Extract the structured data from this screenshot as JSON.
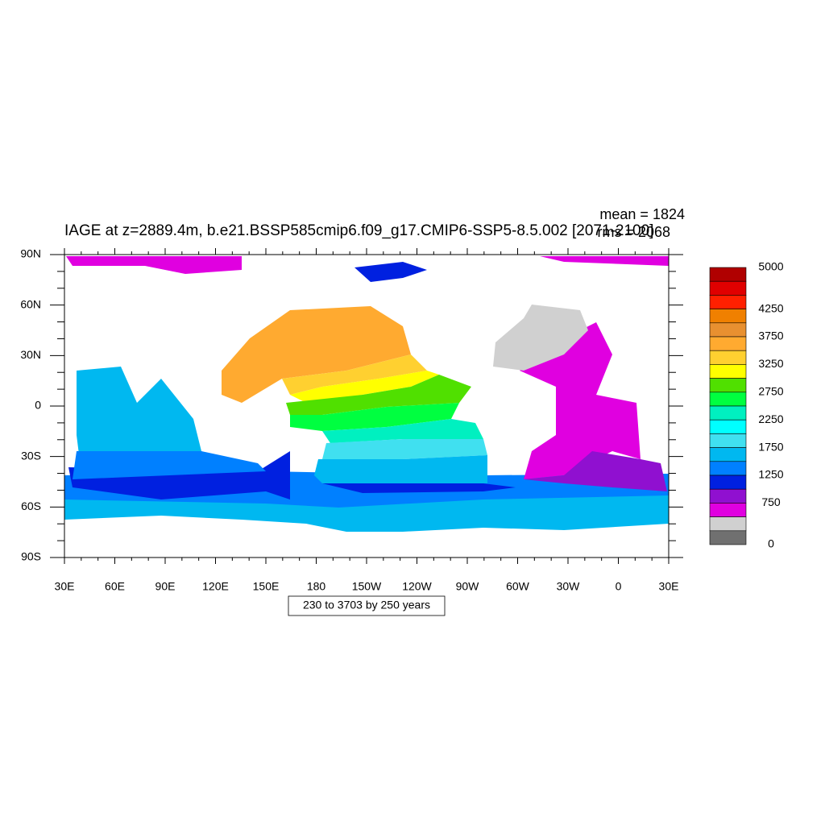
{
  "title": "IAGE at z=2889.4m, b.e21.BSSP585cmip6.f09_g17.CMIP6-SSP5-8.5.002 [2071-2100]",
  "stats": {
    "mean": "mean = 1824",
    "rms": "rms = 2068"
  },
  "lon_labels": [
    "30E",
    "60E",
    "90E",
    "120E",
    "150E",
    "180",
    "150W",
    "120W",
    "90W",
    "60W",
    "30W",
    "0",
    "30E"
  ],
  "lat_labels": [
    "90N",
    "60N",
    "30N",
    "0",
    "30S",
    "60S",
    "90S"
  ],
  "colorbar": {
    "colors": [
      "#b00000",
      "#e00000",
      "#ff2000",
      "#f08000",
      "#e89030",
      "#ffaa30",
      "#ffd030",
      "#ffff00",
      "#50e000",
      "#00ff40",
      "#00f0c0",
      "#00ffff",
      "#40e0f0",
      "#00b8f0",
      "#0080ff",
      "#0020e0",
      "#9010d0",
      "#e000e0",
      "#d0d0d0",
      "#707070"
    ],
    "labels": [
      "5000",
      "4250",
      "3750",
      "3250",
      "2750",
      "2250",
      "1750",
      "1250",
      "750",
      "0"
    ]
  },
  "footnote": "230 to 3703 by 250 years"
}
